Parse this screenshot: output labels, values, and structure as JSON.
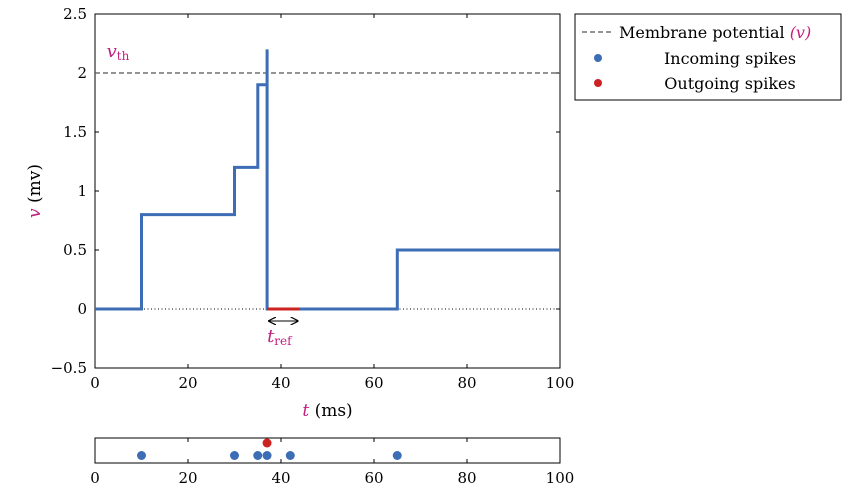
{
  "chart_data": [
    {
      "type": "line",
      "xlabel_var": "t",
      "xlabel_unit": "(ms)",
      "ylabel_var": "v",
      "ylabel_unit": "(mv)",
      "xlim": [
        0,
        100
      ],
      "ylim": [
        -0.5,
        2.5
      ],
      "xticks": [
        0,
        20,
        40,
        60,
        80,
        100
      ],
      "yticks": [
        -0.5,
        0,
        0.5,
        1,
        1.5,
        2,
        2.5
      ],
      "threshold": {
        "value": 2,
        "label_main": "v",
        "label_sub": "th"
      },
      "zero_line": 0,
      "refractory": {
        "start": 37,
        "end": 44,
        "label_main": "t",
        "label_sub": "ref"
      },
      "series": [
        {
          "color": "#3c6db5",
          "steps": [
            [
              0,
              0
            ],
            [
              10,
              0
            ],
            [
              10,
              0.8
            ],
            [
              30,
              0.8
            ],
            [
              30,
              1.2
            ],
            [
              35,
              1.2
            ],
            [
              35,
              1.9
            ],
            [
              37,
              1.9
            ],
            [
              37,
              2.2
            ],
            [
              37,
              0
            ],
            [
              65,
              0
            ],
            [
              65,
              0.5
            ],
            [
              100,
              0.5
            ]
          ]
        }
      ],
      "legend": {
        "placement": "top-right-outside",
        "entries": [
          {
            "kind": "dashed-line",
            "label": "Membrane potential",
            "label_var": "(v)",
            "color": "#555555"
          },
          {
            "kind": "dot",
            "label": "Incoming spikes",
            "color": "#3c6db5"
          },
          {
            "kind": "dot",
            "label": "Outgoing spikes",
            "color": "#cc2222"
          }
        ]
      }
    },
    {
      "type": "scatter",
      "xlim": [
        0,
        100
      ],
      "xticks": [
        0,
        20,
        40,
        60,
        80,
        100
      ],
      "incoming_spikes": [
        10,
        30,
        35,
        37,
        42,
        65
      ],
      "outgoing_spikes": [
        37
      ],
      "incoming_color": "#3c6db5",
      "outgoing_color": "#cc2222"
    }
  ]
}
